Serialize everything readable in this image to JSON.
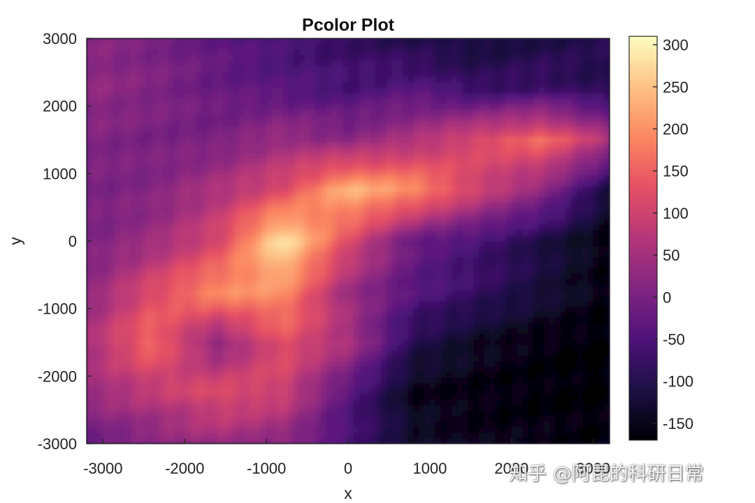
{
  "chart_data": {
    "type": "heatmap",
    "title": "Pcolor Plot",
    "xlabel": "x",
    "ylabel": "y",
    "xlim": [
      -3200,
      3200
    ],
    "ylim": [
      -3000,
      3000
    ],
    "x_ticks": [
      -3000,
      -2000,
      -1000,
      0,
      1000,
      2000,
      3000
    ],
    "y_ticks": [
      -3000,
      -2000,
      -1000,
      0,
      1000,
      2000,
      3000
    ],
    "colormap": "magma",
    "colorbar": {
      "limits": [
        -170,
        310
      ],
      "ticks": [
        -150,
        -100,
        -50,
        0,
        50,
        100,
        150,
        200,
        250,
        300
      ],
      "location": "right"
    },
    "grid": false,
    "z_grid": {
      "x": [
        -3200,
        -2400,
        -1600,
        -800,
        0,
        800,
        1600,
        2400,
        3200
      ],
      "y": [
        3000,
        2250,
        1500,
        750,
        0,
        -750,
        -1500,
        -2250,
        -3000
      ],
      "z": [
        [
          20,
          0,
          -30,
          -60,
          -80,
          -110,
          -120,
          -110,
          -100
        ],
        [
          30,
          10,
          -20,
          -40,
          -60,
          -40,
          -80,
          -70,
          -100
        ],
        [
          10,
          0,
          0,
          40,
          20,
          60,
          120,
          160,
          60
        ],
        [
          0,
          10,
          60,
          120,
          240,
          200,
          100,
          20,
          -120
        ],
        [
          0,
          40,
          110,
          290,
          120,
          -20,
          -60,
          -110,
          -160
        ],
        [
          20,
          120,
          200,
          200,
          40,
          -40,
          -80,
          -120,
          -160
        ],
        [
          60,
          160,
          20,
          130,
          60,
          -100,
          -140,
          -160,
          -170
        ],
        [
          40,
          80,
          120,
          100,
          -40,
          -150,
          -160,
          -165,
          -170
        ],
        [
          -20,
          10,
          40,
          20,
          -60,
          -130,
          -150,
          -155,
          -160
        ]
      ]
    }
  },
  "watermark": "知乎 @阿昆的科研日常"
}
